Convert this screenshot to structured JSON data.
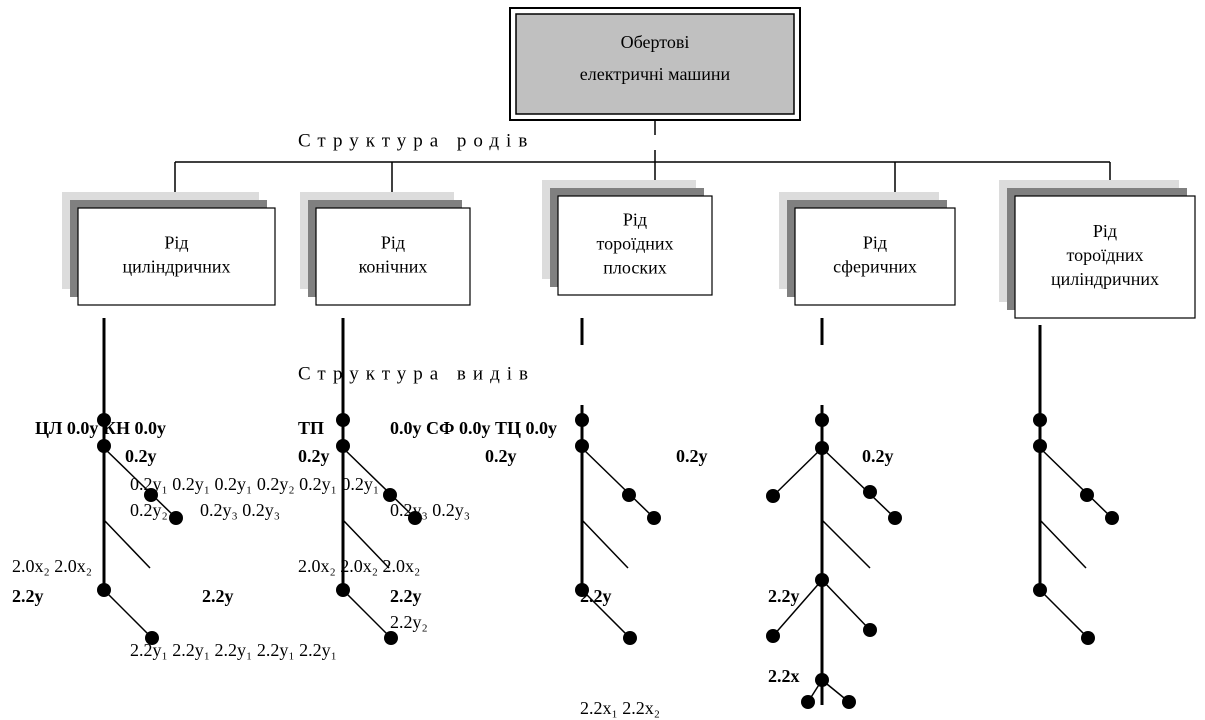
{
  "root": {
    "lines": [
      "Обертові",
      "електричні машини"
    ]
  },
  "genus_structure": "Структура родів",
  "species_structure": "Структура видів",
  "nodes": [
    {
      "lines": [
        "Рід",
        "циліндричних"
      ]
    },
    {
      "lines": [
        "Рід",
        "конічних"
      ]
    },
    {
      "lines": [
        "Рід",
        "тороїдних",
        "плоских"
      ]
    },
    {
      "lines": [
        "Рід",
        "сферичних"
      ]
    },
    {
      "lines": [
        "Рід",
        "тороїдних",
        "циліндричних"
      ]
    }
  ],
  "labels": [
    {
      "text": "ЦЛ 0.0y КН 0.0y",
      "bold": true
    },
    {
      "text": "ТП",
      "bold": true
    },
    {
      "text": "0.0y СФ 0.0y ТЦ 0.0y",
      "bold": true
    },
    {
      "text": "0.2y",
      "bold": true
    },
    {
      "text": "0.2y",
      "bold": true
    },
    {
      "text": "0.2y",
      "bold": true
    },
    {
      "text": "0.2y",
      "bold": true
    },
    {
      "text": "0.2y",
      "bold": true
    },
    {
      "text": "0.2y₁ 0.2y₁ 0.2y₁ 0.2y₂ 0.2y₁ 0.2y₁",
      "bold": false
    },
    {
      "text": "0.2y₂",
      "bold": false
    },
    {
      "text": "0.2y₃ 0.2y₃",
      "bold": false
    },
    {
      "text": "0.2y₃ 0.2y₃",
      "bold": false
    },
    {
      "text": "2.0x₂ 2.0x₂",
      "bold": false
    },
    {
      "text": "2.0x₂ 2.0x₂ 2.0x₂",
      "bold": false
    },
    {
      "text": "2.2y",
      "bold": true
    },
    {
      "text": "2.2y",
      "bold": true
    },
    {
      "text": "2.2y",
      "bold": true
    },
    {
      "text": "2.2y",
      "bold": true
    },
    {
      "text": "2.2y",
      "bold": true
    },
    {
      "text": "2.2y₂",
      "bold": false
    },
    {
      "text": "2.2y₁ 2.2y₁ 2.2y₁ 2.2y₁ 2.2y₁",
      "bold": false
    },
    {
      "text": "2.2x",
      "bold": true
    },
    {
      "text": "2.2x₁ 2.2x₂",
      "bold": false
    }
  ]
}
